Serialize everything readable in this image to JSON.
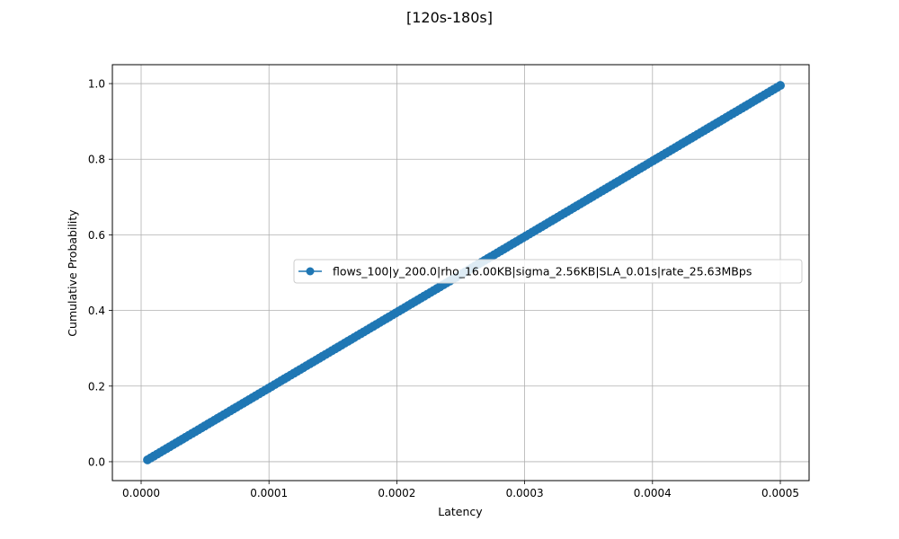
{
  "chart_data": {
    "type": "line",
    "title": "[120s-180s]",
    "xlabel": "Latency",
    "ylabel": "Cumulative Probability",
    "xlim": [
      -2.25e-05,
      0.0005225
    ],
    "ylim": [
      -0.05,
      1.05
    ],
    "xticks": [
      0.0,
      0.0001,
      0.0002,
      0.0003,
      0.0004,
      0.0005
    ],
    "xtick_labels": [
      "0.0000",
      "0.0001",
      "0.0002",
      "0.0003",
      "0.0004",
      "0.0005"
    ],
    "yticks": [
      0.0,
      0.2,
      0.4,
      0.6,
      0.8,
      1.0
    ],
    "ytick_labels": [
      "0.0",
      "0.2",
      "0.4",
      "0.6",
      "0.8",
      "1.0"
    ],
    "grid": true,
    "legend_placement": "center-right",
    "series": [
      {
        "name": "flows_100|y_200.0|rho_16.00KB|sigma_2.56KB|SLA_0.01s|rate_25.63MBps",
        "color": "#1f77b4",
        "marker": "circle",
        "x_start": 5e-06,
        "x_end": 0.0005,
        "y_start": 0.005,
        "y_end": 0.995,
        "num_points": 200
      }
    ]
  }
}
